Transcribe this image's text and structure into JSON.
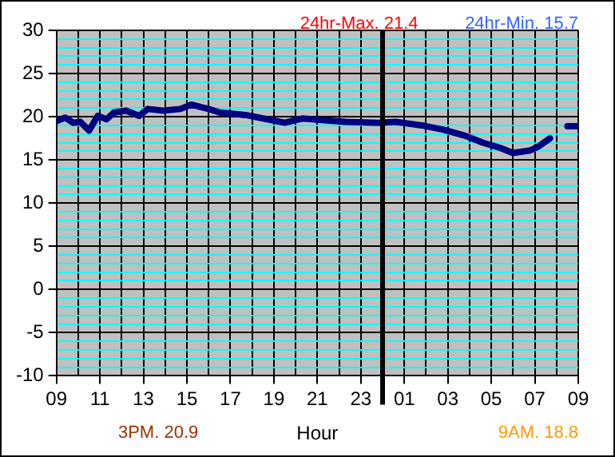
{
  "chart_data": {
    "type": "line",
    "xlabel": "Hour",
    "annotations": [
      "24hr-Max. 21.4",
      "24hr-Min. 15.7",
      "3PM. 20.9",
      "9AM. 18.8"
    ],
    "series": [
      {
        "color": "#000080",
        "x": [
          "--01-01T09:00",
          "--01-01T09:24",
          "--01-01T09:46",
          "--01-01T10:06",
          "--01-01T10:30",
          "--01-01T10:54",
          "--01-01T11:18",
          "--01-01T11:39",
          "--01-01T12:12",
          "--01-01T12:48",
          "--01-01T13:12",
          "--01-01T13:54",
          "--01-01T14:42",
          "--01-01T15:12",
          "--01-01T16:00",
          "--01-01T16:30",
          "--01-01T17:42",
          "--01-01T18:30",
          "--01-01T19:30",
          "--01-01T20:18",
          "--01-01T21:18",
          "--01-01T22:18",
          "--01-01T23:48",
          "--01-02T00:36",
          "--01-02T01:48",
          "--01-02T02:48",
          "--01-02T03:48",
          "--01-02T04:36",
          "--01-02T05:24",
          "--01-02T06:00",
          "--01-02T06:48",
          "--01-02T07:12",
          "--01-02T07:42",
          "--01-02T08:00",
          "--01-02T08:30",
          "--01-02T09:00"
        ],
        "values": [
          19.5,
          19.9,
          19.3,
          19.4,
          18.4,
          20.1,
          19.7,
          20.5,
          20.7,
          20.1,
          20.9,
          20.7,
          20.9,
          21.4,
          20.9,
          20.5,
          20.2,
          19.8,
          19.3,
          19.8,
          19.6,
          19.4,
          19.3,
          19.4,
          19,
          18.5,
          17.8,
          17,
          16.4,
          15.8,
          16.1,
          16.6,
          17.5,
          null,
          18.9,
          18.9
        ]
      }
    ],
    "xlim": [
      "--01-01T09:00",
      "--01-02T09:00"
    ],
    "xticks": [
      {
        "value": "--01-01T09:00",
        "label": "09"
      },
      {
        "value": "--01-01T10:00",
        "label": null
      },
      {
        "value": "--01-01T11:00",
        "label": "11"
      },
      {
        "value": "--01-01T12:00",
        "label": null
      },
      {
        "value": "--01-01T13:00",
        "label": "13"
      },
      {
        "value": "--01-01T14:00",
        "label": null
      },
      {
        "value": "--01-01T15:00",
        "label": "15"
      },
      {
        "value": "--01-01T16:00",
        "label": null
      },
      {
        "value": "--01-01T17:00",
        "label": "17"
      },
      {
        "value": "--01-01T18:00",
        "label": null
      },
      {
        "value": "--01-01T19:00",
        "label": "19"
      },
      {
        "value": "--01-01T20:00",
        "label": null
      },
      {
        "value": "--01-01T21:00",
        "label": "21"
      },
      {
        "value": "--01-01T22:00",
        "label": null
      },
      {
        "value": "--01-01T23:00",
        "label": "23"
      },
      {
        "value": "--01-02T00:00",
        "label": null
      },
      {
        "value": "--01-02T01:00",
        "label": "01"
      },
      {
        "value": "--01-02T02:00",
        "label": null
      },
      {
        "value": "--01-02T03:00",
        "label": "03"
      },
      {
        "value": "--01-02T04:00",
        "label": null
      },
      {
        "value": "--01-02T05:00",
        "label": "05"
      },
      {
        "value": "--01-02T06:00",
        "label": null
      },
      {
        "value": "--01-02T07:00",
        "label": "07"
      },
      {
        "value": "--01-02T08:00",
        "label": null
      },
      {
        "value": "--01-02T09:00",
        "label": "09"
      }
    ],
    "ylim": [
      -10,
      30
    ],
    "yticks": [
      -10,
      {
        "value": -9,
        "label": null
      },
      {
        "value": -8,
        "label": null
      },
      {
        "value": -7,
        "label": null
      },
      {
        "value": -6,
        "label": null
      },
      -5,
      {
        "value": -4,
        "label": null
      },
      {
        "value": -3,
        "label": null
      },
      {
        "value": -2,
        "label": null
      },
      {
        "value": -1,
        "label": null
      },
      0,
      {
        "value": 1,
        "label": null
      },
      {
        "value": 2,
        "label": null
      },
      {
        "value": 3,
        "label": null
      },
      {
        "value": 4,
        "label": null
      },
      5,
      {
        "value": 6,
        "label": null
      },
      {
        "value": 7,
        "label": null
      },
      {
        "value": 8,
        "label": null
      },
      {
        "value": 9,
        "label": null
      },
      10,
      {
        "value": 11,
        "label": null
      },
      {
        "value": 12,
        "label": null
      },
      {
        "value": 13,
        "label": null
      },
      {
        "value": 14,
        "label": null
      },
      15,
      {
        "value": 16,
        "label": null
      },
      {
        "value": 17,
        "label": null
      },
      {
        "value": 18,
        "label": null
      },
      {
        "value": 19,
        "label": null
      },
      20,
      {
        "value": 21,
        "label": null
      },
      {
        "value": 22,
        "label": null
      },
      {
        "value": 23,
        "label": null
      },
      {
        "value": 24,
        "label": null
      },
      25,
      {
        "value": 26,
        "label": null
      },
      {
        "value": 27,
        "label": null
      },
      {
        "value": 28,
        "label": null
      },
      {
        "value": 29,
        "label": null
      },
      30
    ],
    "ref_lines": [
      {
        "axis": "x",
        "value": "--01-02T00:00",
        "color": "#000000"
      }
    ],
    "grid": true,
    "marker": "none",
    "line_style": "solid"
  }
}
